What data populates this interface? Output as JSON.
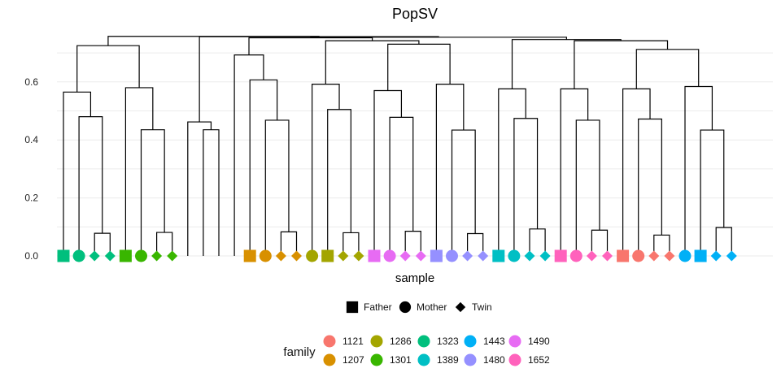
{
  "chart_data": {
    "type": "dendrogram",
    "title": "PopSV",
    "xlabel": "sample",
    "ylabel": "",
    "ylim": [
      0,
      0.75
    ],
    "yticks": [
      0.0,
      0.2,
      0.4,
      0.6
    ],
    "ytick_labels": [
      "0.0",
      "0.2",
      "0.4",
      "0.6"
    ],
    "grid": true,
    "shape_legend": {
      "title": "",
      "placement": "bottom",
      "items": [
        {
          "label": "Father",
          "shape": "square"
        },
        {
          "label": "Mother",
          "shape": "circle"
        },
        {
          "label": "Twin",
          "shape": "diamond"
        }
      ]
    },
    "color_legend": {
      "title": "family",
      "placement": "bottom",
      "items": [
        {
          "label": "1121",
          "color": "#F8766D"
        },
        {
          "label": "1207",
          "color": "#D89000"
        },
        {
          "label": "1286",
          "color": "#A3A500"
        },
        {
          "label": "1301",
          "color": "#39B600"
        },
        {
          "label": "1323",
          "color": "#00BF7D"
        },
        {
          "label": "1389",
          "color": "#00BFC4"
        },
        {
          "label": "1443",
          "color": "#00B0F6"
        },
        {
          "label": "1480",
          "color": "#9590FF"
        },
        {
          "label": "1490",
          "color": "#E76BF3"
        },
        {
          "label": "1652",
          "color": "#FF62BC"
        }
      ]
    },
    "leaves": [
      {
        "shape": "square",
        "family": "1323"
      },
      {
        "shape": "circle",
        "family": "1323"
      },
      {
        "shape": "diamond",
        "family": "1323"
      },
      {
        "shape": "diamond",
        "family": "1323"
      },
      {
        "shape": "square",
        "family": "1301"
      },
      {
        "shape": "circle",
        "family": "1301"
      },
      {
        "shape": "diamond",
        "family": "1301"
      },
      {
        "shape": "diamond",
        "family": "1301"
      },
      {
        "shape": "none",
        "family": ""
      },
      {
        "shape": "none",
        "family": ""
      },
      {
        "shape": "none",
        "family": ""
      },
      {
        "shape": "none",
        "family": ""
      },
      {
        "shape": "square",
        "family": "1207"
      },
      {
        "shape": "circle",
        "family": "1207"
      },
      {
        "shape": "diamond",
        "family": "1207"
      },
      {
        "shape": "diamond",
        "family": "1207"
      },
      {
        "shape": "circle",
        "family": "1286"
      },
      {
        "shape": "square",
        "family": "1286"
      },
      {
        "shape": "diamond",
        "family": "1286"
      },
      {
        "shape": "diamond",
        "family": "1286"
      },
      {
        "shape": "square",
        "family": "1490"
      },
      {
        "shape": "circle",
        "family": "1490"
      },
      {
        "shape": "diamond",
        "family": "1490"
      },
      {
        "shape": "diamond",
        "family": "1490"
      },
      {
        "shape": "square",
        "family": "1480"
      },
      {
        "shape": "circle",
        "family": "1480"
      },
      {
        "shape": "diamond",
        "family": "1480"
      },
      {
        "shape": "diamond",
        "family": "1480"
      },
      {
        "shape": "square",
        "family": "1389"
      },
      {
        "shape": "circle",
        "family": "1389"
      },
      {
        "shape": "diamond",
        "family": "1389"
      },
      {
        "shape": "diamond",
        "family": "1389"
      },
      {
        "shape": "square",
        "family": "1652"
      },
      {
        "shape": "circle",
        "family": "1652"
      },
      {
        "shape": "diamond",
        "family": "1652"
      },
      {
        "shape": "diamond",
        "family": "1652"
      },
      {
        "shape": "square",
        "family": "1121"
      },
      {
        "shape": "circle",
        "family": "1121"
      },
      {
        "shape": "diamond",
        "family": "1121"
      },
      {
        "shape": "diamond",
        "family": "1121"
      },
      {
        "shape": "circle",
        "family": "1443"
      },
      {
        "shape": "square",
        "family": "1443"
      },
      {
        "shape": "diamond",
        "family": "1443"
      },
      {
        "shape": "diamond",
        "family": "1443"
      }
    ],
    "merges": [
      [
        [
          2
        ],
        [
          3
        ],
        0.078
      ],
      [
        [
          1
        ],
        [
          2,
          3
        ],
        0.48
      ],
      [
        [
          0
        ],
        [
          1,
          2,
          3
        ],
        0.565
      ],
      [
        [
          6
        ],
        [
          7
        ],
        0.081
      ],
      [
        [
          5
        ],
        [
          6,
          7
        ],
        0.435
      ],
      [
        [
          4
        ],
        [
          5,
          6,
          7
        ],
        0.58
      ],
      [
        [
          0,
          1,
          2,
          3
        ],
        [
          4,
          5,
          6,
          7
        ],
        0.725
      ],
      [
        [
          9
        ],
        [
          10
        ],
        0.435
      ],
      [
        [
          8
        ],
        [
          9,
          10
        ],
        0.462
      ],
      [
        [
          14
        ],
        [
          15
        ],
        0.083
      ],
      [
        [
          13
        ],
        [
          14,
          15
        ],
        0.468
      ],
      [
        [
          12
        ],
        [
          13,
          14,
          15
        ],
        0.607
      ],
      [
        [
          11
        ],
        [
          12,
          13,
          14,
          15
        ],
        0.693
      ],
      [
        [
          18
        ],
        [
          19
        ],
        0.08
      ],
      [
        [
          17
        ],
        [
          18,
          19
        ],
        0.505
      ],
      [
        [
          16
        ],
        [
          17,
          18,
          19
        ],
        0.592
      ],
      [
        [
          22
        ],
        [
          23
        ],
        0.085
      ],
      [
        [
          21
        ],
        [
          22,
          23
        ],
        0.478
      ],
      [
        [
          20
        ],
        [
          21,
          22,
          23
        ],
        0.57
      ],
      [
        [
          26
        ],
        [
          27
        ],
        0.077
      ],
      [
        [
          25
        ],
        [
          26,
          27
        ],
        0.434
      ],
      [
        [
          24
        ],
        [
          25,
          26,
          27
        ],
        0.592
      ],
      [
        [
          20,
          21,
          22,
          23
        ],
        [
          24,
          25,
          26,
          27
        ],
        0.73
      ],
      [
        [
          16,
          17,
          18,
          19
        ],
        [
          20,
          21,
          22,
          23,
          24,
          25,
          26,
          27
        ],
        0.742
      ],
      [
        [
          30
        ],
        [
          31
        ],
        0.093
      ],
      [
        [
          29
        ],
        [
          30,
          31
        ],
        0.474
      ],
      [
        [
          28
        ],
        [
          29,
          30,
          31
        ],
        0.576
      ],
      [
        [
          34
        ],
        [
          35
        ],
        0.089
      ],
      [
        [
          33
        ],
        [
          34,
          35
        ],
        0.468
      ],
      [
        [
          32
        ],
        [
          33,
          34,
          35
        ],
        0.576
      ],
      [
        [
          38
        ],
        [
          39
        ],
        0.072
      ],
      [
        [
          37
        ],
        [
          38,
          39
        ],
        0.472
      ],
      [
        [
          36
        ],
        [
          37,
          38,
          39
        ],
        0.576
      ],
      [
        [
          42
        ],
        [
          43
        ],
        0.098
      ],
      [
        [
          41
        ],
        [
          42,
          43
        ],
        0.434
      ],
      [
        [
          40
        ],
        [
          41,
          42,
          43
        ],
        0.584
      ],
      [
        [
          36,
          37,
          38,
          39
        ],
        [
          40,
          41,
          42,
          43
        ],
        0.712
      ],
      [
        [
          32,
          33,
          34,
          35
        ],
        [
          36,
          37,
          38,
          39,
          40,
          41,
          42,
          43
        ],
        0.742
      ],
      [
        [
          28,
          29,
          30,
          31
        ],
        [
          32,
          33,
          34,
          35,
          36,
          37,
          38,
          39,
          40,
          41,
          42,
          43
        ],
        0.746
      ],
      [
        [
          11,
          12,
          13,
          14,
          15
        ],
        [
          16,
          17,
          18,
          19,
          20,
          21,
          22,
          23,
          24,
          25,
          26,
          27
        ],
        0.752
      ],
      [
        [
          11,
          12,
          13,
          14,
          15,
          16,
          17,
          18,
          19,
          20,
          21,
          22,
          23,
          24,
          25,
          26,
          27
        ],
        [
          28,
          29,
          30,
          31,
          32,
          33,
          34,
          35,
          36,
          37,
          38,
          39,
          40,
          41,
          42,
          43
        ],
        0.754
      ],
      [
        [
          8,
          9,
          10
        ],
        [
          11,
          12,
          13,
          14,
          15,
          16,
          17,
          18,
          19,
          20,
          21,
          22,
          23,
          24,
          25,
          26,
          27,
          28,
          29,
          30,
          31,
          32,
          33,
          34,
          35,
          36,
          37,
          38,
          39,
          40,
          41,
          42,
          43
        ],
        0.756
      ],
      [
        [
          0,
          1,
          2,
          3,
          4,
          5,
          6,
          7
        ],
        [
          8,
          9,
          10,
          11,
          12,
          13,
          14,
          15,
          16,
          17,
          18,
          19,
          20,
          21,
          22,
          23,
          24,
          25,
          26,
          27,
          28,
          29,
          30,
          31,
          32,
          33,
          34,
          35,
          36,
          37,
          38,
          39,
          40,
          41,
          42,
          43
        ],
        0.757
      ]
    ]
  }
}
